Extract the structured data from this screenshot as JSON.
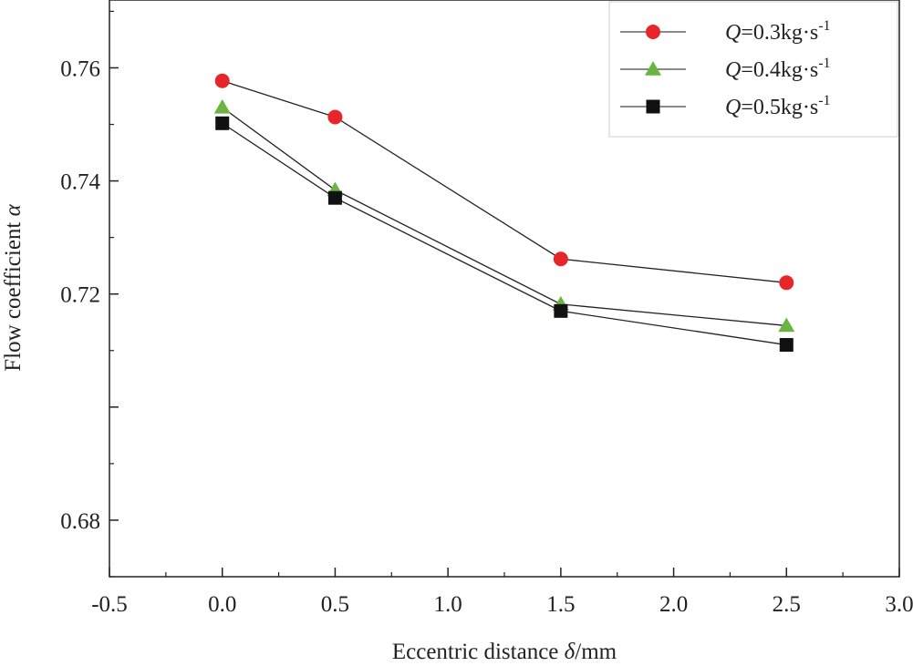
{
  "chart_data": {
    "type": "line",
    "x": [
      0.0,
      0.5,
      1.5,
      2.5
    ],
    "xlim": [
      -0.5,
      3.0
    ],
    "ylim": [
      0.67,
      0.772
    ],
    "xticks": [
      -0.5,
      0.0,
      0.5,
      1.0,
      1.5,
      2.0,
      2.5,
      3.0
    ],
    "xtick_labels": [
      "-0.5",
      "0.0",
      "0.5",
      "1.0",
      "1.5",
      "2.0",
      "2.5",
      "3.0"
    ],
    "yticks": [
      0.68,
      0.72,
      0.74,
      0.76
    ],
    "ytick_labels": [
      "0.68",
      "0.72",
      "0.74",
      "0.76"
    ],
    "xlabel": {
      "prefix": "Eccentric distance ",
      "symbol": "δ",
      "suffix": "/mm"
    },
    "ylabel": {
      "prefix": "Flow coefficient ",
      "symbol": "α"
    },
    "grid": false,
    "legend_position": "top-right",
    "series": [
      {
        "name": "Q=0.3kg·s-1",
        "label_q": "Q",
        "label_mid": "=0.3kg·s",
        "label_sup": "-1",
        "marker": "circle",
        "color": "#e8262a",
        "values": [
          0.7577,
          0.7513,
          0.7262,
          0.722
        ]
      },
      {
        "name": "Q=0.4kg·s-1",
        "label_q": "Q",
        "label_mid": "=0.4kg·s",
        "label_sup": "-1",
        "marker": "triangle",
        "color": "#6ab53f",
        "values": [
          0.753,
          0.7384,
          0.7182,
          0.7144
        ]
      },
      {
        "name": "Q=0.5kg·s-1",
        "label_q": "Q",
        "label_mid": "=0.5kg·s",
        "label_sup": "-1",
        "marker": "square",
        "color": "#111111",
        "values": [
          0.7502,
          0.737,
          0.717,
          0.711
        ]
      }
    ]
  }
}
